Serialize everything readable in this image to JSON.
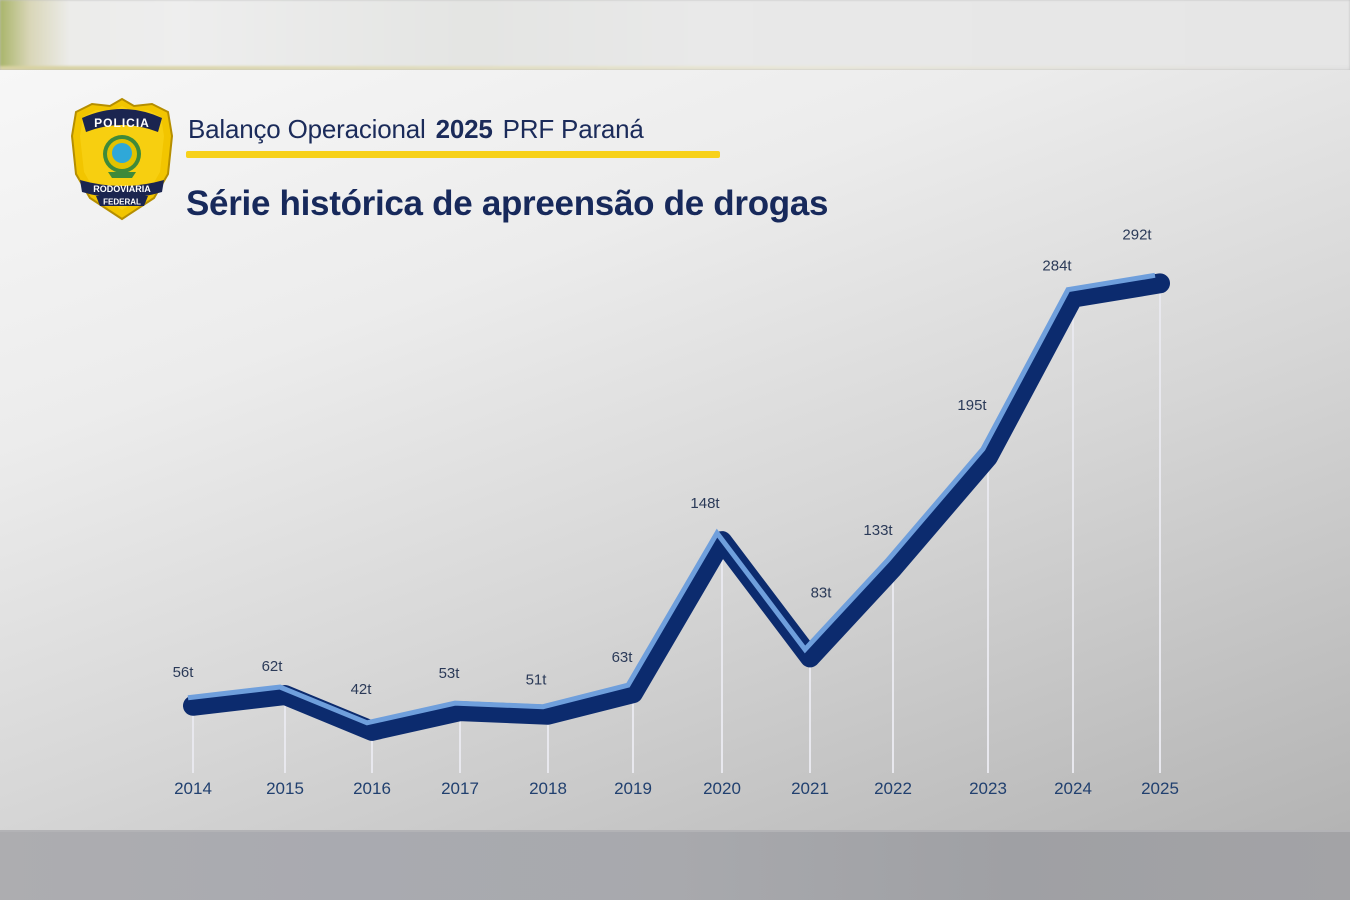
{
  "header": {
    "subtitle_prefix": "Balanço Operacional",
    "subtitle_year": "2025",
    "subtitle_suffix": "PRF Paraná",
    "title": "Série histórica de apreensão de drogas"
  },
  "logo": {
    "top_text": "POLICIA",
    "middle_text": "RODOVIARIA",
    "bottom_text": "FEDERAL",
    "colors": {
      "shield": "#f2c500",
      "banner": "#1b2550",
      "emblem_green": "#3f8a3a",
      "emblem_blue": "#2fa8d8"
    }
  },
  "colors": {
    "line_dark": "#0c2b6e",
    "line_light": "#6f9fdc",
    "gridline": "#e8e8ee",
    "accent_yellow": "#f7d11a",
    "text_navy": "#17295b"
  },
  "chart_data": {
    "type": "line",
    "title": "Série histórica de apreensão de drogas",
    "subtitle": "Balanço Operacional 2025 PRF Paraná",
    "xlabel": "",
    "ylabel": "",
    "unit": "t",
    "categories": [
      "2014",
      "2015",
      "2016",
      "2017",
      "2018",
      "2019",
      "2020",
      "2021",
      "2022",
      "2023",
      "2024",
      "2025"
    ],
    "values": [
      56,
      62,
      42,
      53,
      51,
      63,
      148,
      83,
      133,
      195,
      284,
      292
    ],
    "labels": [
      "56t",
      "62t",
      "42t",
      "53t",
      "51t",
      "63t",
      "148t",
      "83t",
      "133t",
      "195t",
      "284t",
      "292t"
    ],
    "grid": "vertical drop lines only",
    "legend": "none"
  }
}
